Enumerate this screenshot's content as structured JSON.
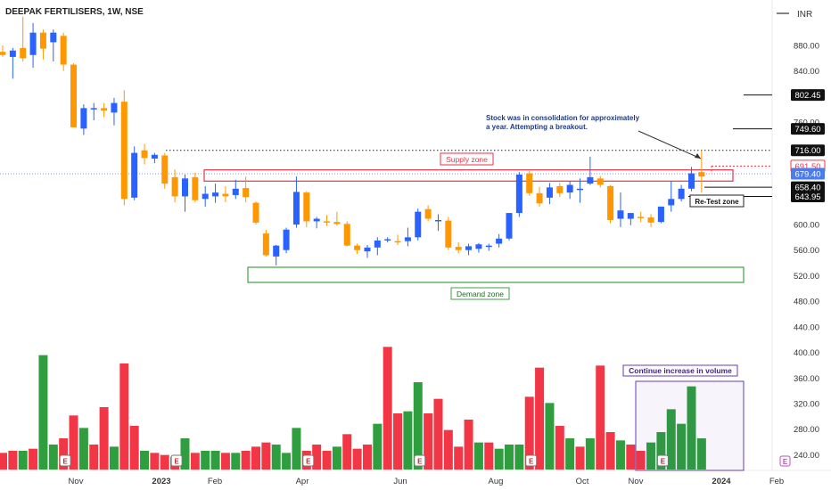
{
  "header": {
    "title": "DEEPAK FERTILISERS, 1W, NSE",
    "currency": "INR"
  },
  "colors": {
    "up": "#2962ff",
    "down": "#ff9800",
    "vol_up": "#2e9e3f",
    "vol_down": "#f23645",
    "supply": "#e8334a",
    "demand": "#43a047",
    "volume_box": "#6a3cb0",
    "price_current": "#4a7cf0",
    "price_red": "#f23645",
    "price_black": "#111111"
  },
  "chart_data": {
    "type": "candlestick",
    "y_axis": {
      "range": [
        200,
        900
      ],
      "ticks": [
        "880.00",
        "840.00",
        "800.00",
        "760.00",
        "720.00",
        "680.00",
        "640.00",
        "600.00",
        "560.00",
        "520.00",
        "480.00",
        "440.00",
        "400.00",
        "360.00",
        "320.00",
        "280.00",
        "240.00"
      ]
    },
    "x_axis": {
      "ticks": [
        "Nov",
        "2023",
        "Feb",
        "Apr",
        "Jun",
        "Aug",
        "Oct",
        "Nov",
        "2024",
        "Feb"
      ]
    },
    "price_labels": [
      {
        "text": "802.45",
        "value": 802.45,
        "style": "black"
      },
      {
        "text": "749.60",
        "value": 749.6,
        "style": "black"
      },
      {
        "text": "716.00",
        "value": 716.0,
        "style": "black"
      },
      {
        "text": "691.50",
        "value": 691.5,
        "style": "red"
      },
      {
        "text": "679.40",
        "value": 679.4,
        "style": "current"
      },
      {
        "text": "658.40",
        "value": 658.4,
        "style": "black"
      },
      {
        "text": "643.95",
        "value": 643.95,
        "style": "black"
      }
    ],
    "candles": [
      {
        "o": 870,
        "h": 880,
        "l": 862,
        "c": 865
      },
      {
        "o": 862,
        "h": 876,
        "l": 828,
        "c": 872
      },
      {
        "o": 876,
        "h": 925,
        "l": 855,
        "c": 860
      },
      {
        "o": 865,
        "h": 915,
        "l": 845,
        "c": 900
      },
      {
        "o": 900,
        "h": 905,
        "l": 858,
        "c": 875
      },
      {
        "o": 885,
        "h": 905,
        "l": 855,
        "c": 900
      },
      {
        "o": 895,
        "h": 900,
        "l": 840,
        "c": 850
      },
      {
        "o": 850,
        "h": 852,
        "l": 752,
        "c": 752
      },
      {
        "o": 750,
        "h": 788,
        "l": 740,
        "c": 782
      },
      {
        "o": 782,
        "h": 790,
        "l": 763,
        "c": 782
      },
      {
        "o": 782,
        "h": 790,
        "l": 768,
        "c": 778
      },
      {
        "o": 775,
        "h": 798,
        "l": 755,
        "c": 790
      },
      {
        "o": 792,
        "h": 810,
        "l": 630,
        "c": 640
      },
      {
        "o": 642,
        "h": 722,
        "l": 638,
        "c": 712
      },
      {
        "o": 716,
        "h": 726,
        "l": 694,
        "c": 704
      },
      {
        "o": 703,
        "h": 712,
        "l": 696,
        "c": 709
      },
      {
        "o": 708,
        "h": 712,
        "l": 656,
        "c": 664
      },
      {
        "o": 674,
        "h": 686,
        "l": 635,
        "c": 644
      },
      {
        "o": 644,
        "h": 678,
        "l": 620,
        "c": 672
      },
      {
        "o": 674,
        "h": 681,
        "l": 635,
        "c": 638
      },
      {
        "o": 640,
        "h": 660,
        "l": 628,
        "c": 648
      },
      {
        "o": 644,
        "h": 664,
        "l": 634,
        "c": 650
      },
      {
        "o": 648,
        "h": 660,
        "l": 635,
        "c": 644
      },
      {
        "o": 646,
        "h": 670,
        "l": 640,
        "c": 656
      },
      {
        "o": 657,
        "h": 675,
        "l": 635,
        "c": 643
      },
      {
        "o": 634,
        "h": 636,
        "l": 600,
        "c": 603
      },
      {
        "o": 586,
        "h": 592,
        "l": 550,
        "c": 552
      },
      {
        "o": 550,
        "h": 568,
        "l": 536,
        "c": 567
      },
      {
        "o": 560,
        "h": 595,
        "l": 555,
        "c": 592
      },
      {
        "o": 600,
        "h": 675,
        "l": 595,
        "c": 651
      },
      {
        "o": 650,
        "h": 652,
        "l": 596,
        "c": 605
      },
      {
        "o": 605,
        "h": 612,
        "l": 594,
        "c": 609
      },
      {
        "o": 605,
        "h": 615,
        "l": 598,
        "c": 603
      },
      {
        "o": 604,
        "h": 620,
        "l": 598,
        "c": 601
      },
      {
        "o": 601,
        "h": 605,
        "l": 566,
        "c": 567
      },
      {
        "o": 567,
        "h": 570,
        "l": 554,
        "c": 560
      },
      {
        "o": 558,
        "h": 568,
        "l": 548,
        "c": 564
      },
      {
        "o": 564,
        "h": 580,
        "l": 552,
        "c": 575
      },
      {
        "o": 576,
        "h": 580,
        "l": 572,
        "c": 577
      },
      {
        "o": 574,
        "h": 584,
        "l": 568,
        "c": 573
      },
      {
        "o": 574,
        "h": 595,
        "l": 566,
        "c": 580
      },
      {
        "o": 580,
        "h": 625,
        "l": 575,
        "c": 620
      },
      {
        "o": 624,
        "h": 630,
        "l": 605,
        "c": 609
      },
      {
        "o": 607,
        "h": 616,
        "l": 590,
        "c": 607
      },
      {
        "o": 606,
        "h": 612,
        "l": 560,
        "c": 564
      },
      {
        "o": 565,
        "h": 572,
        "l": 555,
        "c": 560
      },
      {
        "o": 560,
        "h": 570,
        "l": 552,
        "c": 566
      },
      {
        "o": 562,
        "h": 571,
        "l": 556,
        "c": 569
      },
      {
        "o": 565,
        "h": 570,
        "l": 559,
        "c": 567
      },
      {
        "o": 570,
        "h": 585,
        "l": 564,
        "c": 578
      },
      {
        "o": 578,
        "h": 618,
        "l": 575,
        "c": 618
      },
      {
        "o": 618,
        "h": 682,
        "l": 612,
        "c": 678
      },
      {
        "o": 680,
        "h": 684,
        "l": 645,
        "c": 649
      },
      {
        "o": 649,
        "h": 659,
        "l": 628,
        "c": 633
      },
      {
        "o": 642,
        "h": 665,
        "l": 632,
        "c": 658
      },
      {
        "o": 660,
        "h": 665,
        "l": 643,
        "c": 649
      },
      {
        "o": 650,
        "h": 668,
        "l": 640,
        "c": 662
      },
      {
        "o": 655,
        "h": 672,
        "l": 634,
        "c": 656
      },
      {
        "o": 664,
        "h": 706,
        "l": 662,
        "c": 674
      },
      {
        "o": 672,
        "h": 676,
        "l": 658,
        "c": 662
      },
      {
        "o": 660,
        "h": 662,
        "l": 602,
        "c": 607
      },
      {
        "o": 609,
        "h": 650,
        "l": 596,
        "c": 622
      },
      {
        "o": 609,
        "h": 618,
        "l": 599,
        "c": 618
      },
      {
        "o": 612,
        "h": 620,
        "l": 604,
        "c": 610
      },
      {
        "o": 611,
        "h": 616,
        "l": 596,
        "c": 603
      },
      {
        "o": 604,
        "h": 628,
        "l": 602,
        "c": 628
      },
      {
        "o": 630,
        "h": 668,
        "l": 620,
        "c": 640
      },
      {
        "o": 640,
        "h": 662,
        "l": 636,
        "c": 656
      },
      {
        "o": 656,
        "h": 690,
        "l": 652,
        "c": 680
      },
      {
        "o": 682,
        "h": 716,
        "l": 650,
        "c": 675
      }
    ],
    "volume_up": [
      false,
      false,
      true,
      false,
      true,
      true,
      false,
      false,
      true,
      false,
      false,
      true,
      false,
      false,
      true,
      false,
      false,
      false,
      true,
      false,
      true,
      true,
      false,
      true,
      false,
      false,
      false,
      true,
      true,
      true,
      false,
      false,
      false,
      true,
      false,
      false,
      false,
      true,
      false,
      false,
      true,
      true,
      false,
      false,
      false,
      false,
      false,
      true,
      false,
      true,
      true,
      true,
      false,
      false,
      true,
      false,
      true,
      false,
      true,
      false,
      false,
      true,
      false,
      false,
      true,
      true,
      true,
      true,
      true,
      true
    ],
    "volume_levels": [
      0.08,
      0.09,
      0.09,
      0.1,
      0.55,
      0.12,
      0.15,
      0.26,
      0.2,
      0.12,
      0.3,
      0.11,
      0.51,
      0.21,
      0.09,
      0.08,
      0.07,
      0.06,
      0.15,
      0.08,
      0.09,
      0.09,
      0.08,
      0.08,
      0.09,
      0.11,
      0.13,
      0.12,
      0.08,
      0.2,
      0.09,
      0.12,
      0.09,
      0.11,
      0.17,
      0.1,
      0.12,
      0.22,
      0.59,
      0.27,
      0.28,
      0.42,
      0.27,
      0.34,
      0.19,
      0.11,
      0.24,
      0.13,
      0.13,
      0.1,
      0.12,
      0.12,
      0.35,
      0.49,
      0.32,
      0.21,
      0.15,
      0.11,
      0.15,
      0.5,
      0.18,
      0.14,
      0.12,
      0.09,
      0.13,
      0.18,
      0.29,
      0.22,
      0.4,
      0.15
    ],
    "earnings_markers": [
      {
        "index": 6,
        "label": "E"
      },
      {
        "index": 17,
        "label": "E"
      },
      {
        "index": 30,
        "label": "E"
      },
      {
        "index": 41,
        "label": "E"
      },
      {
        "index": 52,
        "label": "E"
      },
      {
        "index": 65,
        "label": "E"
      }
    ],
    "zones": {
      "supply": {
        "label": "Supply zone",
        "low": 679,
        "high": 691
      },
      "demand": {
        "label": "Demand zone",
        "low": 512,
        "high": 536
      }
    },
    "annotations": {
      "consolidation_line1": "Stock was in consolidation for approximately",
      "consolidation_line2": "a year. Attempting a breakout.",
      "retest": "Re-Test zone",
      "volume": "Continue increase in volume"
    }
  }
}
